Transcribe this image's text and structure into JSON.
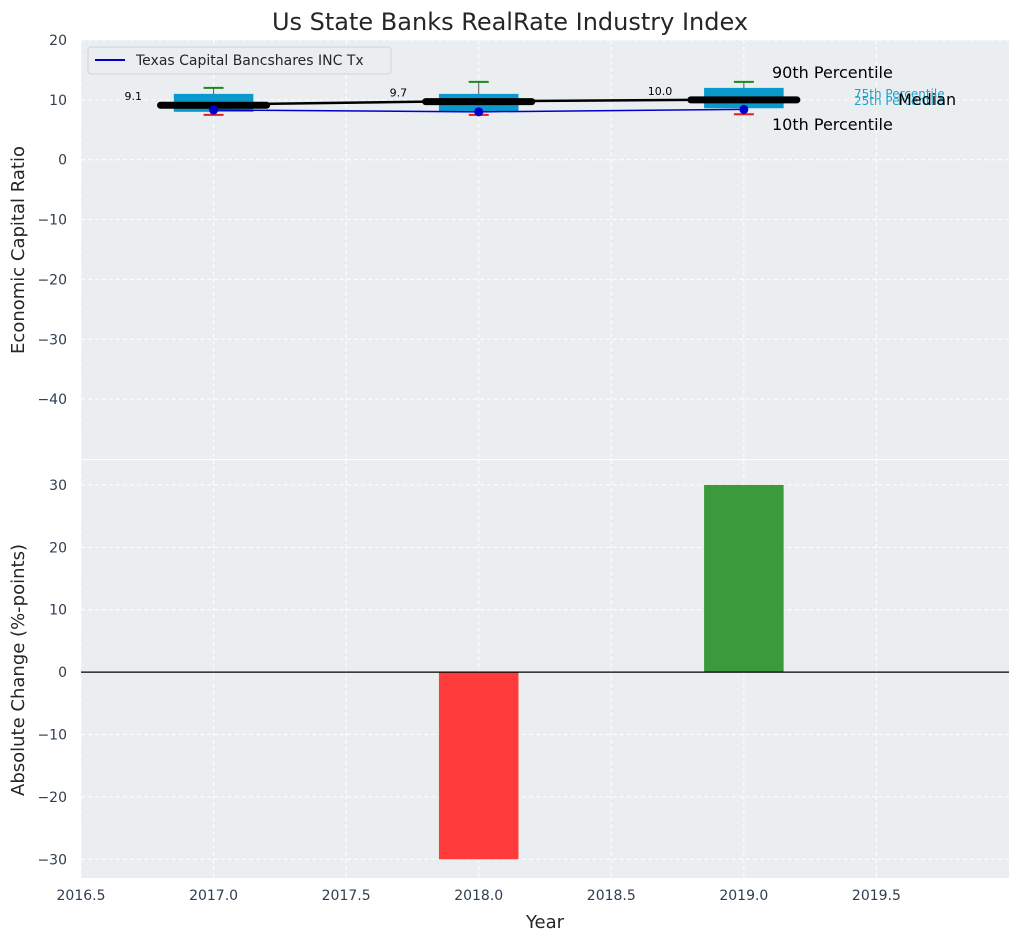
{
  "chart_data": [
    {
      "type": "box",
      "title": "Us State Banks RealRate Industry Index",
      "xlabel": "",
      "ylabel": "Economic Capital Ratio",
      "ylim": [
        -50,
        20
      ],
      "yticks": [
        20,
        10,
        0,
        -10,
        -20,
        -30,
        -40
      ],
      "xlim": [
        2016.5,
        2020.0
      ],
      "grid": true,
      "legend": {
        "placement": "top-left",
        "entries": [
          "Texas Capital Bancshares INC Tx"
        ]
      },
      "categories": [
        2017,
        2018,
        2019
      ],
      "p10": [
        7.5,
        7.5,
        7.6
      ],
      "p25": [
        8.0,
        8.1,
        8.6
      ],
      "median": [
        9.1,
        9.7,
        10.0
      ],
      "p75": [
        11.0,
        11.0,
        12.0
      ],
      "p90": [
        12.0,
        13.0,
        13.0
      ],
      "median_labels": [
        "9.1",
        "9.7",
        "10.0"
      ],
      "series": [
        {
          "name": "Texas Capital Bancshares INC Tx",
          "x": [
            2017,
            2018,
            2019
          ],
          "values": [
            8.3,
            8.0,
            8.4
          ],
          "color": "#0000cc"
        }
      ],
      "annotations": {
        "p90": "90th Percentile",
        "p75": "75th Percentile",
        "median": "Median",
        "p25": "25th Percentile",
        "p10": "10th Percentile"
      }
    },
    {
      "type": "bar",
      "xlabel": "Year",
      "ylabel": "Absolute Change (%-points)",
      "xlim": [
        2016.5,
        2020.0
      ],
      "ylim": [
        -33,
        34
      ],
      "yticks": [
        30,
        20,
        10,
        0,
        -10,
        -20,
        -30
      ],
      "xticks": [
        "2016.5",
        "2017.0",
        "2017.5",
        "2018.0",
        "2018.5",
        "2019.0",
        "2019.5"
      ],
      "grid": true,
      "x": [
        2017,
        2018,
        2019
      ],
      "values": [
        0,
        -30,
        30
      ],
      "colors": {
        "negative": "#ff3b3b",
        "positive": "#3b9a3b"
      }
    }
  ],
  "colors": {
    "panel_bg": "#eaeef0",
    "box": "#0a99cc",
    "whisker_top": "#1a8a1a",
    "whisker_bottom": "#e02020",
    "median_line": "#000000",
    "company_line": "#0000cc",
    "p_annotation_color": "#1aa3cc"
  }
}
